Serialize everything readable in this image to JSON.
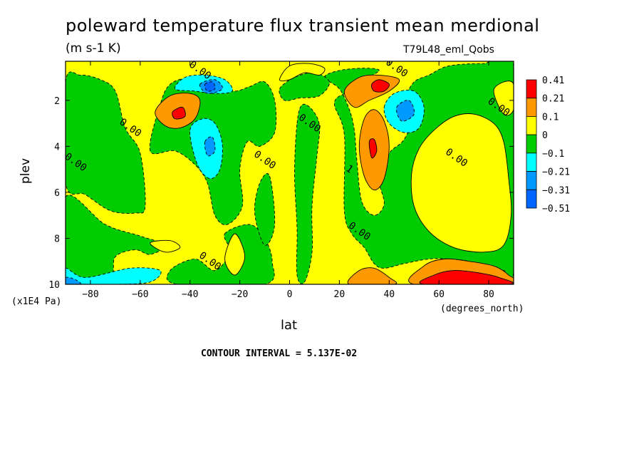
{
  "header": {
    "title": "poleward temperature flux transient mean merdional",
    "units": "(m s-1 K)",
    "experiment": "T79L48_eml_Qobs",
    "contour_interval": "CONTOUR INTERVAL = 5.137E-02"
  },
  "chart_data": {
    "type": "heatmap",
    "title": "poleward temperature flux transient mean merdional",
    "subtitle": "(m s-1 K)",
    "xlabel": "lat",
    "x_units": "(degrees_north)",
    "ylabel": "plev",
    "y_units": "(x1E4 Pa)",
    "xlim": [
      -90,
      90
    ],
    "ylim": [
      10,
      0.3
    ],
    "x_ticks": [
      -80,
      -60,
      -40,
      -20,
      0,
      20,
      40,
      60,
      80
    ],
    "y_ticks": [
      2,
      4,
      6,
      8,
      10
    ],
    "colorbar": {
      "levels": [
        "0.41",
        "0.21",
        "0.1",
        "0",
        "−0.1",
        "−0.21",
        "−0.31",
        "−0.51"
      ],
      "colors": [
        "#ff0000",
        "#ff9900",
        "#ffff00",
        "#00cc00",
        "#00ffff",
        "#0099ff",
        "#0066ff"
      ]
    },
    "background_color": "#ffff00",
    "regions": [
      {
        "color": "#00cc00",
        "level": -0.05,
        "points": [
          [
            -90,
            1.2
          ],
          [
            -84,
            0.9
          ],
          [
            -76,
            1.1
          ],
          [
            -70,
            1.6
          ],
          [
            -66,
            3.2
          ],
          [
            -60,
            4.3
          ],
          [
            -58,
            6.6
          ],
          [
            -62,
            6.9
          ],
          [
            -72,
            6.8
          ],
          [
            -82,
            6.1
          ],
          [
            -90,
            5.6
          ]
        ]
      },
      {
        "color": "#00cc00",
        "level": -0.05,
        "points": [
          [
            -56,
            4.2
          ],
          [
            -52,
            2.2
          ],
          [
            -48,
            1.3
          ],
          [
            -40,
            1.0
          ],
          [
            -34,
            1.1
          ],
          [
            -28,
            1.4
          ],
          [
            -22,
            1.6
          ],
          [
            -16,
            1.4
          ],
          [
            -10,
            1.2
          ],
          [
            -6,
            2.0
          ],
          [
            -6,
            3.4
          ],
          [
            -12,
            4.0
          ],
          [
            -17,
            3.8
          ],
          [
            -20,
            5.0
          ],
          [
            -19,
            6.6
          ],
          [
            -25,
            7.4
          ],
          [
            -30,
            7.0
          ],
          [
            -33,
            5.6
          ],
          [
            -38,
            4.8
          ],
          [
            -46,
            4.2
          ]
        ]
      },
      {
        "color": "#00cc00",
        "level": -0.05,
        "points": [
          [
            -90,
            6.2
          ],
          [
            -74,
            7.4
          ],
          [
            -60,
            7.9
          ],
          [
            -50,
            8.3
          ],
          [
            -56,
            8.7
          ],
          [
            -62,
            8.5
          ],
          [
            -70,
            8.8
          ],
          [
            -72,
            9.7
          ],
          [
            -84,
            10.0
          ],
          [
            -90,
            10.0
          ]
        ]
      },
      {
        "color": "#00cc00",
        "level": -0.05,
        "points": [
          [
            -26,
            7.8
          ],
          [
            -16,
            7.4
          ],
          [
            -10,
            8.0
          ],
          [
            -7,
            9.0
          ],
          [
            -10,
            10.0
          ],
          [
            -45,
            10.0
          ],
          [
            -48,
            9.4
          ],
          [
            -38,
            8.9
          ],
          [
            -30,
            9.4
          ],
          [
            -24,
            8.6
          ]
        ]
      },
      {
        "color": "#00cc00",
        "level": -0.05,
        "points": [
          [
            -8,
            5.3
          ],
          [
            -6,
            7.4
          ],
          [
            -10,
            8.3
          ],
          [
            -14,
            6.9
          ],
          [
            -12,
            5.6
          ]
        ]
      },
      {
        "color": "#00cc00",
        "level": -0.05,
        "points": [
          [
            3,
            3.0
          ],
          [
            5,
            2.2
          ],
          [
            9,
            2.4
          ],
          [
            12,
            3.1
          ],
          [
            11,
            4.4
          ],
          [
            9,
            6.6
          ],
          [
            9,
            8.6
          ],
          [
            6,
            9.9
          ],
          [
            3,
            9.6
          ],
          [
            3,
            7.6
          ],
          [
            2,
            5.2
          ]
        ]
      },
      {
        "color": "#00cc00",
        "level": -0.05,
        "points": [
          [
            14,
            1.0
          ],
          [
            20,
            0.7
          ],
          [
            30,
            0.6
          ],
          [
            36,
            0.7
          ],
          [
            30,
            1.1
          ],
          [
            24,
            1.6
          ],
          [
            18,
            2.1
          ],
          [
            22,
            3.5
          ],
          [
            22,
            6.8
          ],
          [
            25,
            7.8
          ],
          [
            30,
            8.4
          ],
          [
            34,
            9.1
          ],
          [
            38,
            9.3
          ],
          [
            46,
            9.1
          ],
          [
            56,
            8.9
          ],
          [
            64,
            8.9
          ],
          [
            72,
            9.0
          ],
          [
            78,
            9.3
          ],
          [
            86,
            9.4
          ],
          [
            90,
            9.3
          ],
          [
            90,
            0.5
          ],
          [
            78,
            0.4
          ],
          [
            64,
            0.5
          ],
          [
            56,
            0.9
          ],
          [
            50,
            1.2
          ],
          [
            47,
            1.9
          ],
          [
            50,
            2.6
          ],
          [
            46,
            3.7
          ],
          [
            40,
            4.3
          ],
          [
            36,
            5.4
          ],
          [
            38,
            6.5
          ],
          [
            34,
            7.0
          ],
          [
            29,
            6.4
          ],
          [
            27,
            4.6
          ],
          [
            26,
            3.3
          ],
          [
            24,
            2.4
          ],
          [
            20,
            1.5
          ]
        ]
      },
      {
        "color": "#00cc00",
        "level": -0.05,
        "points": [
          [
            -4,
            1.5
          ],
          [
            2,
            1.0
          ],
          [
            10,
            0.8
          ],
          [
            16,
            1.2
          ],
          [
            12,
            1.8
          ],
          [
            4,
            1.9
          ],
          [
            -2,
            2.0
          ]
        ]
      },
      {
        "color": "#ffff00",
        "level": 0.05,
        "points": [
          [
            52,
            4.1
          ],
          [
            58,
            3.3
          ],
          [
            66,
            2.7
          ],
          [
            74,
            2.6
          ],
          [
            82,
            3.0
          ],
          [
            86,
            3.8
          ],
          [
            88,
            5.4
          ],
          [
            89,
            7.0
          ],
          [
            86,
            8.3
          ],
          [
            78,
            8.6
          ],
          [
            66,
            8.4
          ],
          [
            56,
            7.7
          ],
          [
            50,
            6.6
          ],
          [
            49,
            5.2
          ]
        ]
      },
      {
        "color": "#ffff00",
        "level": 0.05,
        "points": [
          [
            82,
            1.6
          ],
          [
            86,
            1.2
          ],
          [
            90,
            1.3
          ],
          [
            90,
            2.4
          ],
          [
            86,
            2.6
          ]
        ]
      },
      {
        "color": "#ffff00",
        "level": 0.05,
        "points": [
          [
            -4,
            1.1
          ],
          [
            0,
            0.5
          ],
          [
            8,
            0.4
          ],
          [
            14,
            0.6
          ],
          [
            12,
            0.9
          ],
          [
            6,
            0.8
          ],
          [
            0,
            1.1
          ]
        ]
      },
      {
        "color": "#ffff00",
        "level": 0.05,
        "points": [
          [
            -26,
            8.9
          ],
          [
            -22,
            7.8
          ],
          [
            -18,
            8.8
          ],
          [
            -22,
            9.6
          ]
        ]
      },
      {
        "color": "#ffff00",
        "level": 0.05,
        "points": [
          [
            -50,
            8.6
          ],
          [
            -56,
            8.2
          ],
          [
            -48,
            8.1
          ],
          [
            -44,
            8.4
          ]
        ]
      },
      {
        "color": "#00ffff",
        "level": -0.15,
        "points": [
          [
            -40,
            3.3
          ],
          [
            -35,
            2.8
          ],
          [
            -30,
            3.0
          ],
          [
            -27,
            3.9
          ],
          [
            -28,
            5.0
          ],
          [
            -32,
            5.4
          ],
          [
            -37,
            4.8
          ]
        ]
      },
      {
        "color": "#00ffff",
        "level": -0.15,
        "points": [
          [
            -46,
            1.5
          ],
          [
            -42,
            1.0
          ],
          [
            -34,
            0.9
          ],
          [
            -26,
            1.1
          ],
          [
            -23,
            1.6
          ],
          [
            -30,
            1.7
          ],
          [
            -38,
            1.6
          ]
        ]
      },
      {
        "color": "#00ffff",
        "level": -0.15,
        "points": [
          [
            38,
            2.3
          ],
          [
            42,
            1.7
          ],
          [
            50,
            1.6
          ],
          [
            54,
            2.3
          ],
          [
            52,
            3.2
          ],
          [
            46,
            3.4
          ],
          [
            40,
            3.0
          ]
        ]
      },
      {
        "color": "#00ffff",
        "level": -0.15,
        "points": [
          [
            -90,
            9.3
          ],
          [
            -82,
            9.7
          ],
          [
            -64,
            9.3
          ],
          [
            -52,
            9.4
          ],
          [
            -56,
            9.9
          ],
          [
            -70,
            10.0
          ],
          [
            -90,
            10.0
          ]
        ]
      },
      {
        "color": "#0099ff",
        "level": -0.25,
        "points": [
          [
            -36,
            1.3
          ],
          [
            -30,
            1.1
          ],
          [
            -27,
            1.5
          ],
          [
            -33,
            1.7
          ]
        ]
      },
      {
        "color": "#0099ff",
        "level": -0.25,
        "points": [
          [
            -34,
            3.8
          ],
          [
            -31,
            3.6
          ],
          [
            -30,
            4.2
          ],
          [
            -33,
            4.4
          ]
        ]
      },
      {
        "color": "#0099ff",
        "level": -0.25,
        "points": [
          [
            43,
            2.3
          ],
          [
            48,
            2.0
          ],
          [
            50,
            2.6
          ],
          [
            45,
            2.9
          ]
        ]
      },
      {
        "color": "#0099ff",
        "level": -0.25,
        "points": [
          [
            -90,
            9.7
          ],
          [
            -86,
            9.8
          ],
          [
            -84,
            10.0
          ],
          [
            -90,
            10.0
          ]
        ]
      },
      {
        "color": "#0066ff",
        "level": -0.4,
        "points": [
          [
            -34,
            1.3
          ],
          [
            -31,
            1.2
          ],
          [
            -30,
            1.5
          ],
          [
            -33,
            1.6
          ]
        ]
      },
      {
        "color": "#ff9900",
        "level": 0.15,
        "points": [
          [
            -54,
            2.5
          ],
          [
            -48,
            1.8
          ],
          [
            -40,
            1.7
          ],
          [
            -36,
            2.0
          ],
          [
            -38,
            2.8
          ],
          [
            -44,
            3.2
          ],
          [
            -50,
            3.1
          ]
        ]
      },
      {
        "color": "#ff9900",
        "level": 0.15,
        "points": [
          [
            30,
            2.8
          ],
          [
            34,
            2.4
          ],
          [
            38,
            2.9
          ],
          [
            40,
            4.0
          ],
          [
            38,
            5.4
          ],
          [
            34,
            5.9
          ],
          [
            30,
            5.3
          ],
          [
            28,
            4.0
          ]
        ]
      },
      {
        "color": "#ff9900",
        "level": 0.15,
        "points": [
          [
            22,
            1.6
          ],
          [
            28,
            1.0
          ],
          [
            36,
            0.9
          ],
          [
            44,
            1.1
          ],
          [
            40,
            1.6
          ],
          [
            32,
            2.0
          ],
          [
            26,
            2.3
          ]
        ]
      },
      {
        "color": "#ff9900",
        "level": 0.15,
        "points": [
          [
            24,
            10.0
          ],
          [
            28,
            9.4
          ],
          [
            34,
            9.3
          ],
          [
            40,
            9.7
          ],
          [
            42,
            10.0
          ]
        ]
      },
      {
        "color": "#ff9900",
        "level": 0.15,
        "points": [
          [
            50,
            10.0
          ],
          [
            54,
            9.2
          ],
          [
            62,
            8.9
          ],
          [
            72,
            9.0
          ],
          [
            82,
            9.2
          ],
          [
            88,
            9.6
          ],
          [
            90,
            10.0
          ]
        ]
      },
      {
        "color": "#ff0000",
        "level": 0.31,
        "points": [
          [
            -47,
            2.5
          ],
          [
            -43,
            2.3
          ],
          [
            -42,
            2.7
          ],
          [
            -46,
            2.8
          ]
        ]
      },
      {
        "color": "#ff0000",
        "level": 0.31,
        "points": [
          [
            33,
            1.3
          ],
          [
            36,
            1.1
          ],
          [
            40,
            1.3
          ],
          [
            38,
            1.6
          ],
          [
            34,
            1.6
          ]
        ]
      },
      {
        "color": "#ff0000",
        "level": 0.31,
        "points": [
          [
            32,
            3.8
          ],
          [
            34,
            3.7
          ],
          [
            35,
            4.2
          ],
          [
            33,
            4.5
          ]
        ]
      },
      {
        "color": "#ff0000",
        "level": 0.31,
        "points": [
          [
            54,
            10.0
          ],
          [
            58,
            9.6
          ],
          [
            66,
            9.4
          ],
          [
            76,
            9.5
          ],
          [
            84,
            9.7
          ],
          [
            88,
            10.0
          ]
        ]
      }
    ],
    "contour_labels": [
      {
        "text": "0.00",
        "lat": -36,
        "plev": 0.7
      },
      {
        "text": "0.00",
        "lat": 43,
        "plev": 0.6
      },
      {
        "text": "0.00",
        "lat": -64,
        "plev": 3.2
      },
      {
        "text": "0.00",
        "lat": -86,
        "plev": 4.7
      },
      {
        "text": "0.00",
        "lat": -10,
        "plev": 4.6
      },
      {
        "text": "0.00",
        "lat": 8,
        "plev": 3.0
      },
      {
        "text": "0.00",
        "lat": 67,
        "plev": 4.5
      },
      {
        "text": "0.00",
        "lat": 84,
        "plev": 2.3
      },
      {
        "text": "0.00",
        "lat": 28,
        "plev": 7.7
      },
      {
        "text": "0.00",
        "lat": -32,
        "plev": 9.0
      },
      {
        "text": "1",
        "lat": 24,
        "plev": 5.0
      }
    ]
  }
}
